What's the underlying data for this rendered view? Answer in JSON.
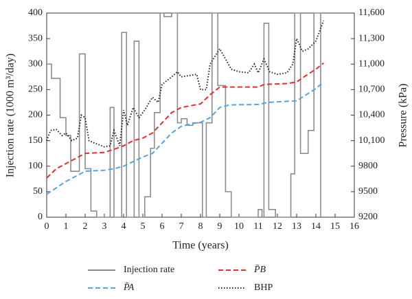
{
  "chart_data": {
    "type": "line",
    "xlabel": "Time (years)",
    "ylabel": "Injection rate (1000 m³/day)",
    "y2label": "Pressure (kPa)",
    "xlim": [
      0,
      16
    ],
    "xticks": [
      0,
      1,
      2,
      3,
      4,
      5,
      6,
      7,
      8,
      9,
      10,
      11,
      12,
      13,
      14,
      15,
      16
    ],
    "ylim": [
      0,
      400
    ],
    "yticks": [
      0,
      50,
      100,
      150,
      200,
      250,
      300,
      350,
      400
    ],
    "y2lim": [
      9200,
      11600
    ],
    "y2ticks": [
      9200,
      9500,
      9800,
      {
        "value": 10100,
        "label": "10,100"
      },
      {
        "value": 10400,
        "label": "10,400"
      },
      {
        "value": 10700,
        "label": "10,700"
      },
      {
        "value": 11000,
        "label": "11,000"
      },
      {
        "value": 11300,
        "label": "11,300"
      },
      {
        "value": 11600,
        "label": "11,600"
      }
    ],
    "series": [
      {
        "name": "Injection rate",
        "color": "#8c8c8c",
        "style": "solid",
        "axis": "y",
        "x": [
          0,
          0.25,
          0.25,
          0.7,
          0.7,
          1.0,
          1.0,
          1.25,
          1.25,
          1.7,
          1.7,
          2.0,
          2.0,
          2.3,
          2.3,
          2.6,
          2.6,
          3.3,
          3.3,
          3.5,
          3.5,
          3.9,
          3.9,
          4.15,
          4.15,
          4.55,
          4.55,
          4.8,
          4.8,
          5.1,
          5.1,
          5.4,
          5.4,
          5.6,
          5.6,
          5.9,
          5.9,
          6.1,
          6.1,
          6.5,
          6.5,
          6.8,
          6.8,
          7.0,
          7.0,
          7.3,
          7.3,
          7.6,
          7.6,
          8.1,
          8.1,
          8.3,
          8.3,
          8.6,
          8.6,
          8.9,
          8.9,
          9.3,
          9.3,
          9.6,
          9.6,
          11.0,
          11.0,
          11.2,
          11.2,
          11.3,
          11.3,
          11.55,
          11.55,
          11.9,
          11.9,
          12.7,
          12.7,
          12.9,
          12.9,
          13.2,
          13.2,
          13.6,
          13.6,
          13.9,
          13.9,
          14.25,
          14.25
        ],
        "values": [
          300,
          300,
          272,
          272,
          195,
          195,
          160,
          160,
          90,
          90,
          320,
          320,
          95,
          95,
          12,
          12,
          0,
          0,
          215,
          215,
          0,
          0,
          362,
          362,
          0,
          0,
          345,
          345,
          0,
          0,
          40,
          40,
          135,
          135,
          205,
          205,
          400,
          400,
          393,
          393,
          400,
          400,
          185,
          185,
          193,
          193,
          180,
          180,
          185,
          185,
          0,
          0,
          185,
          185,
          400,
          400,
          258,
          258,
          50,
          50,
          0,
          0,
          15,
          15,
          0,
          0,
          380,
          380,
          15,
          15,
          0,
          0,
          85,
          85,
          400,
          400,
          125,
          125,
          170,
          170,
          400,
          400,
          0
        ]
      },
      {
        "name": "P̄A",
        "color": "#4da6e6",
        "style": "dashed",
        "axis": "y2",
        "x": [
          0,
          1,
          1.5,
          2,
          3,
          3.5,
          4,
          5,
          5.5,
          6,
          6.5,
          7,
          7.5,
          8,
          8.5,
          9,
          9.5,
          11,
          11.5,
          13,
          13.5,
          14,
          14.4
        ],
        "values": [
          9470,
          9620,
          9680,
          9740,
          9752,
          9770,
          9800,
          9908,
          9950,
          10070,
          10190,
          10268,
          10298,
          10316,
          10370,
          10490,
          10520,
          10526,
          10550,
          10568,
          10640,
          10712,
          10790
        ]
      },
      {
        "name": "P̄B",
        "color": "#ee2b2b",
        "style": "dashed",
        "axis": "y2",
        "x": [
          0,
          0.5,
          1,
          1.5,
          2,
          3,
          3.5,
          4,
          4.5,
          5,
          5.5,
          6,
          6.5,
          7,
          8,
          8.5,
          9,
          11,
          11.3,
          12.5,
          13,
          13.5,
          14,
          14.4
        ],
        "values": [
          9662,
          9770,
          9830,
          9890,
          9950,
          9962,
          9998,
          10040,
          10100,
          10130,
          10190,
          10310,
          10430,
          10490,
          10532,
          10640,
          10730,
          10730,
          10760,
          10772,
          10790,
          10868,
          10940,
          11012
        ]
      },
      {
        "name": "BHP",
        "color": "#222222",
        "style": "dotted",
        "axis": "y2",
        "x": [
          0,
          0.2,
          0.5,
          0.8,
          1,
          1.3,
          1.6,
          1.8,
          2,
          2.2,
          2.5,
          3,
          3.3,
          3.5,
          3.8,
          4,
          4.2,
          4.5,
          4.8,
          5.1,
          5.5,
          5.8,
          6,
          6.5,
          6.8,
          7,
          7.5,
          7.8,
          8,
          8.3,
          8.5,
          9,
          9.3,
          9.6,
          10,
          10.5,
          10.8,
          11,
          11.3,
          11.6,
          12,
          12.5,
          12.8,
          13,
          13.3,
          13.6,
          14,
          14.4
        ],
        "values": [
          10100,
          10220,
          10232,
          10160,
          10190,
          10100,
          10130,
          10400,
          10370,
          10100,
          10070,
          10028,
          10040,
          10220,
          10040,
          10460,
          10280,
          10490,
          10370,
          10460,
          10610,
          10550,
          10760,
          10850,
          10910,
          10850,
          10868,
          10880,
          10700,
          10700,
          11000,
          11180,
          11060,
          10940,
          10910,
          10898,
          11000,
          10898,
          11060,
          10910,
          10880,
          10898,
          11000,
          11300,
          11150,
          11180,
          11270,
          11510
        ]
      }
    ]
  }
}
